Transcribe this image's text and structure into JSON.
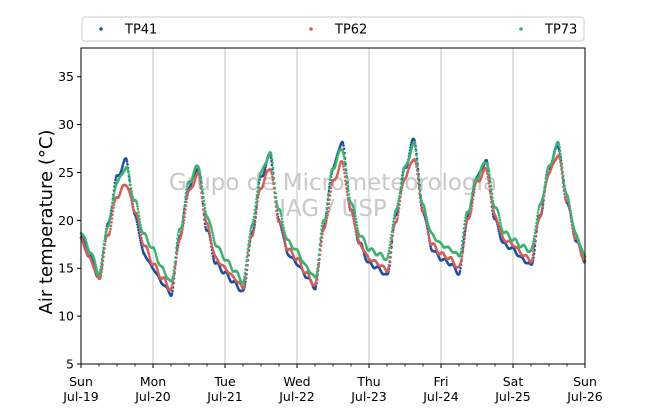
{
  "chart_data": {
    "type": "scatter",
    "ylabel": "Air temperature (°C)",
    "ylim": [
      5,
      38
    ],
    "yticks": [
      5,
      10,
      15,
      20,
      25,
      30,
      35
    ],
    "xlim": [
      "2020-07-19",
      "2020-07-26"
    ],
    "xticks": [
      {
        "day": "Sun",
        "date": "Jul-19"
      },
      {
        "day": "Mon",
        "date": "Jul-20"
      },
      {
        "day": "Tue",
        "date": "Jul-21"
      },
      {
        "day": "Wed",
        "date": "Jul-22"
      },
      {
        "day": "Thu",
        "date": "Jul-23"
      },
      {
        "day": "Fri",
        "date": "Jul-24"
      },
      {
        "day": "Sat",
        "date": "Jul-25"
      },
      {
        "day": "Sun",
        "date": "Jul-26"
      }
    ],
    "grid": "vertical",
    "legend_position": "top (above plot), 3 columns",
    "watermark": [
      "Grupo de Micrometeorologia",
      "IAG / USP"
    ],
    "series": [
      {
        "name": "TP41",
        "color": "#1f4e9c",
        "daily_min": [
          14.0,
          12.3,
          12.5,
          13.0,
          14.2,
          14.5,
          15.3,
          15.8
        ],
        "daily_max": [
          26.3,
          25.5,
          26.8,
          28.2,
          28.5,
          26.2,
          27.8
        ],
        "points": [
          [
            "2020-07-19 00:00",
            18.2
          ],
          [
            "2020-07-19 03:00",
            16.2
          ],
          [
            "2020-07-19 06:00",
            14.0
          ],
          [
            "2020-07-19 09:00",
            19.5
          ],
          [
            "2020-07-19 12:00",
            24.5
          ],
          [
            "2020-07-19 15:00",
            26.3
          ],
          [
            "2020-07-19 18:00",
            20.5
          ],
          [
            "2020-07-19 21:00",
            16.5
          ],
          [
            "2020-07-20 00:00",
            15.0
          ],
          [
            "2020-07-20 03:00",
            13.5
          ],
          [
            "2020-07-20 06:00",
            12.3
          ],
          [
            "2020-07-20 09:00",
            18.5
          ],
          [
            "2020-07-20 12:00",
            23.5
          ],
          [
            "2020-07-20 15:00",
            25.5
          ],
          [
            "2020-07-20 18:00",
            19.0
          ],
          [
            "2020-07-20 21:00",
            15.5
          ],
          [
            "2020-07-21 00:00",
            14.5
          ],
          [
            "2020-07-21 03:00",
            13.5
          ],
          [
            "2020-07-21 06:00",
            12.5
          ],
          [
            "2020-07-21 09:00",
            18.5
          ],
          [
            "2020-07-21 12:00",
            24.5
          ],
          [
            "2020-07-21 15:00",
            26.8
          ],
          [
            "2020-07-21 18:00",
            20.0
          ],
          [
            "2020-07-21 21:00",
            16.5
          ],
          [
            "2020-07-22 00:00",
            15.5
          ],
          [
            "2020-07-22 03:00",
            14.2
          ],
          [
            "2020-07-22 06:00",
            13.0
          ],
          [
            "2020-07-22 09:00",
            19.5
          ],
          [
            "2020-07-22 12:00",
            25.5
          ],
          [
            "2020-07-22 15:00",
            28.2
          ],
          [
            "2020-07-22 18:00",
            21.0
          ],
          [
            "2020-07-22 21:00",
            17.5
          ],
          [
            "2020-07-23 00:00",
            15.5
          ],
          [
            "2020-07-23 03:00",
            15.0
          ],
          [
            "2020-07-23 06:00",
            14.2
          ],
          [
            "2020-07-23 09:00",
            20.5
          ],
          [
            "2020-07-23 12:00",
            25.5
          ],
          [
            "2020-07-23 15:00",
            28.5
          ],
          [
            "2020-07-23 18:00",
            21.0
          ],
          [
            "2020-07-23 21:00",
            17.0
          ],
          [
            "2020-07-24 00:00",
            16.0
          ],
          [
            "2020-07-24 03:00",
            15.5
          ],
          [
            "2020-07-24 06:00",
            14.5
          ],
          [
            "2020-07-24 09:00",
            20.5
          ],
          [
            "2020-07-24 12:00",
            24.5
          ],
          [
            "2020-07-24 15:00",
            26.2
          ],
          [
            "2020-07-24 18:00",
            20.0
          ],
          [
            "2020-07-24 21:00",
            17.5
          ],
          [
            "2020-07-25 00:00",
            17.0
          ],
          [
            "2020-07-25 03:00",
            16.0
          ],
          [
            "2020-07-25 06:00",
            15.3
          ],
          [
            "2020-07-25 09:00",
            20.5
          ],
          [
            "2020-07-25 12:00",
            25.5
          ],
          [
            "2020-07-25 15:00",
            27.8
          ],
          [
            "2020-07-25 18:00",
            22.0
          ],
          [
            "2020-07-25 21:00",
            18.0
          ],
          [
            "2020-07-26 00:00",
            15.8
          ]
        ]
      },
      {
        "name": "TP62",
        "color": "#d1605a",
        "daily_min": [
          13.9,
          12.8,
          13.0,
          13.2,
          14.8,
          15.0,
          15.8,
          15.8
        ],
        "daily_max": [
          23.8,
          24.8,
          25.5,
          26.0,
          26.5,
          25.3,
          26.8
        ],
        "points": [
          [
            "2020-07-19 00:00",
            18.0
          ],
          [
            "2020-07-19 03:00",
            16.0
          ],
          [
            "2020-07-19 06:00",
            13.9
          ],
          [
            "2020-07-19 09:00",
            18.5
          ],
          [
            "2020-07-19 12:00",
            22.5
          ],
          [
            "2020-07-19 15:00",
            23.8
          ],
          [
            "2020-07-19 18:00",
            21.0
          ],
          [
            "2020-07-19 21:00",
            17.5
          ],
          [
            "2020-07-20 00:00",
            15.5
          ],
          [
            "2020-07-20 03:00",
            14.0
          ],
          [
            "2020-07-20 06:00",
            12.8
          ],
          [
            "2020-07-20 09:00",
            18.0
          ],
          [
            "2020-07-20 12:00",
            23.0
          ],
          [
            "2020-07-20 15:00",
            24.8
          ],
          [
            "2020-07-20 18:00",
            19.5
          ],
          [
            "2020-07-20 21:00",
            16.0
          ],
          [
            "2020-07-21 00:00",
            15.0
          ],
          [
            "2020-07-21 03:00",
            14.0
          ],
          [
            "2020-07-21 06:00",
            13.0
          ],
          [
            "2020-07-21 09:00",
            18.5
          ],
          [
            "2020-07-21 12:00",
            23.5
          ],
          [
            "2020-07-21 15:00",
            25.5
          ],
          [
            "2020-07-21 18:00",
            20.0
          ],
          [
            "2020-07-21 21:00",
            17.0
          ],
          [
            "2020-07-22 00:00",
            16.0
          ],
          [
            "2020-07-22 03:00",
            14.5
          ],
          [
            "2020-07-22 06:00",
            13.2
          ],
          [
            "2020-07-22 09:00",
            19.0
          ],
          [
            "2020-07-22 12:00",
            24.0
          ],
          [
            "2020-07-22 15:00",
            26.0
          ],
          [
            "2020-07-22 18:00",
            21.0
          ],
          [
            "2020-07-22 21:00",
            17.5
          ],
          [
            "2020-07-23 00:00",
            16.0
          ],
          [
            "2020-07-23 03:00",
            15.5
          ],
          [
            "2020-07-23 06:00",
            14.8
          ],
          [
            "2020-07-23 09:00",
            20.0
          ],
          [
            "2020-07-23 12:00",
            24.5
          ],
          [
            "2020-07-23 15:00",
            26.5
          ],
          [
            "2020-07-23 18:00",
            21.0
          ],
          [
            "2020-07-23 21:00",
            17.5
          ],
          [
            "2020-07-24 00:00",
            16.5
          ],
          [
            "2020-07-24 03:00",
            16.0
          ],
          [
            "2020-07-24 06:00",
            15.0
          ],
          [
            "2020-07-24 09:00",
            20.0
          ],
          [
            "2020-07-24 12:00",
            24.0
          ],
          [
            "2020-07-24 15:00",
            25.3
          ],
          [
            "2020-07-24 18:00",
            20.5
          ],
          [
            "2020-07-24 21:00",
            18.0
          ],
          [
            "2020-07-25 00:00",
            17.5
          ],
          [
            "2020-07-25 03:00",
            16.5
          ],
          [
            "2020-07-25 06:00",
            15.8
          ],
          [
            "2020-07-25 09:00",
            20.5
          ],
          [
            "2020-07-25 12:00",
            25.0
          ],
          [
            "2020-07-25 15:00",
            26.8
          ],
          [
            "2020-07-25 18:00",
            22.0
          ],
          [
            "2020-07-25 21:00",
            18.0
          ],
          [
            "2020-07-26 00:00",
            15.8
          ]
        ]
      },
      {
        "name": "TP73",
        "color": "#3cb371",
        "daily_min": [
          14.5,
          13.5,
          13.6,
          14.0,
          16.0,
          16.3,
          16.8,
          16.2
        ],
        "daily_max": [
          25.5,
          25.7,
          27.0,
          27.5,
          28.0,
          26.2,
          28.0
        ],
        "points": [
          [
            "2020-07-19 00:00",
            18.8
          ],
          [
            "2020-07-19 03:00",
            16.8
          ],
          [
            "2020-07-19 06:00",
            14.5
          ],
          [
            "2020-07-19 09:00",
            19.5
          ],
          [
            "2020-07-19 12:00",
            24.0
          ],
          [
            "2020-07-19 15:00",
            25.5
          ],
          [
            "2020-07-19 18:00",
            22.0
          ],
          [
            "2020-07-19 21:00",
            18.5
          ],
          [
            "2020-07-20 00:00",
            17.0
          ],
          [
            "2020-07-20 03:00",
            15.0
          ],
          [
            "2020-07-20 06:00",
            13.5
          ],
          [
            "2020-07-20 09:00",
            19.0
          ],
          [
            "2020-07-20 12:00",
            24.0
          ],
          [
            "2020-07-20 15:00",
            25.7
          ],
          [
            "2020-07-20 18:00",
            20.5
          ],
          [
            "2020-07-20 21:00",
            17.5
          ],
          [
            "2020-07-21 00:00",
            16.0
          ],
          [
            "2020-07-21 03:00",
            14.8
          ],
          [
            "2020-07-21 06:00",
            13.6
          ],
          [
            "2020-07-21 09:00",
            19.5
          ],
          [
            "2020-07-21 12:00",
            25.0
          ],
          [
            "2020-07-21 15:00",
            27.0
          ],
          [
            "2020-07-21 18:00",
            21.0
          ],
          [
            "2020-07-21 21:00",
            17.8
          ],
          [
            "2020-07-22 00:00",
            16.8
          ],
          [
            "2020-07-22 03:00",
            15.2
          ],
          [
            "2020-07-22 06:00",
            14.0
          ],
          [
            "2020-07-22 09:00",
            20.0
          ],
          [
            "2020-07-22 12:00",
            25.5
          ],
          [
            "2020-07-22 15:00",
            27.5
          ],
          [
            "2020-07-22 18:00",
            22.0
          ],
          [
            "2020-07-22 21:00",
            18.5
          ],
          [
            "2020-07-23 00:00",
            17.0
          ],
          [
            "2020-07-23 03:00",
            16.5
          ],
          [
            "2020-07-23 06:00",
            16.0
          ],
          [
            "2020-07-23 09:00",
            21.0
          ],
          [
            "2020-07-23 12:00",
            25.5
          ],
          [
            "2020-07-23 15:00",
            28.0
          ],
          [
            "2020-07-23 18:00",
            21.5
          ],
          [
            "2020-07-23 21:00",
            18.5
          ],
          [
            "2020-07-24 00:00",
            17.5
          ],
          [
            "2020-07-24 03:00",
            17.0
          ],
          [
            "2020-07-24 06:00",
            16.3
          ],
          [
            "2020-07-24 09:00",
            21.0
          ],
          [
            "2020-07-24 12:00",
            24.5
          ],
          [
            "2020-07-24 15:00",
            26.2
          ],
          [
            "2020-07-24 18:00",
            21.5
          ],
          [
            "2020-07-24 21:00",
            18.8
          ],
          [
            "2020-07-25 00:00",
            18.0
          ],
          [
            "2020-07-25 03:00",
            17.3
          ],
          [
            "2020-07-25 06:00",
            16.8
          ],
          [
            "2020-07-25 09:00",
            21.5
          ],
          [
            "2020-07-25 12:00",
            25.5
          ],
          [
            "2020-07-25 15:00",
            28.0
          ],
          [
            "2020-07-25 18:00",
            22.5
          ],
          [
            "2020-07-25 21:00",
            18.5
          ],
          [
            "2020-07-26 00:00",
            16.2
          ]
        ]
      }
    ]
  }
}
